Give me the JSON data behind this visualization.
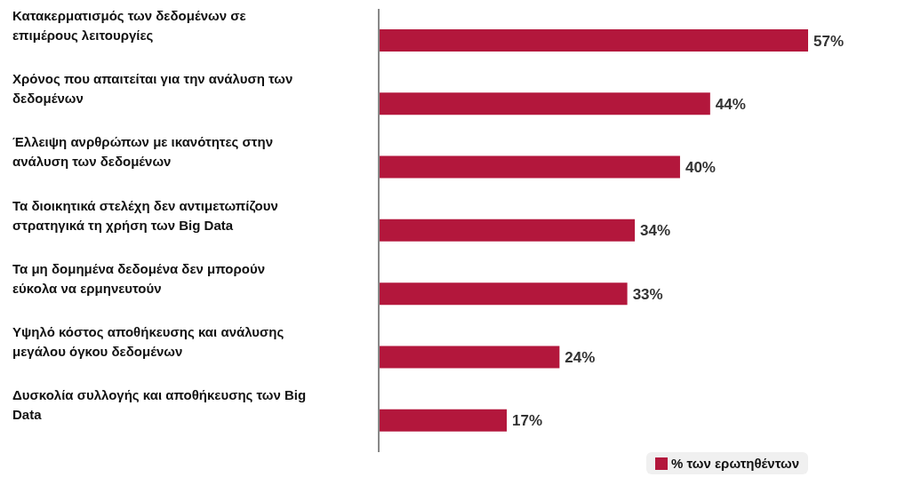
{
  "chart_data": {
    "type": "bar",
    "orientation": "horizontal",
    "tick_labels": "y",
    "categories": [
      "Κατακερματισμός των δεδομένων σε επιμέρους λειτουργίες",
      "Χρόνος που απαιτείται για την ανάλυση των δεδομένων",
      "Έλλειψη ανρθρώπων με ικανότητες στην ανάλυση των δεδομένων",
      "Τα διοικητικά στελέχη δεν αντιμετωπίζουν στρατηγικά τη χρήση των Big Data",
      "Τα μη δομημένα δεδομένα δεν μπορούν εύκολα να ερμηνευτούν",
      "Υψηλό κόστος αποθήκευσης και ανάλυσης μεγάλου όγκου δεδομένων",
      "Δυσκολία συλλογής και αποθήκευσης των Big Data"
    ],
    "series": [
      {
        "name": "% των ερωτηθέντων",
        "color": "#b3173c",
        "values": [
          57,
          44,
          40,
          34,
          33,
          24,
          17
        ],
        "value_labels": [
          "57%",
          "44%",
          "40%",
          "34%",
          "33%",
          "24%",
          "17%"
        ]
      }
    ],
    "legend": "bottom right",
    "grid": false
  }
}
